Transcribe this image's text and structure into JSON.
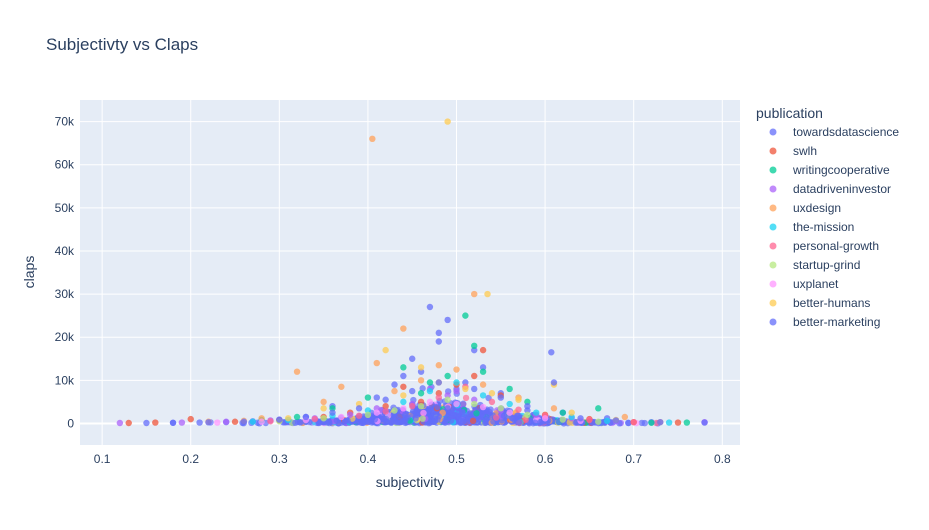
{
  "chart_data": {
    "type": "scatter",
    "title": "Subjectivty vs Claps",
    "xlabel": "subjectivity",
    "ylabel": "claps",
    "xlim": [
      0.075,
      0.82
    ],
    "ylim": [
      -5000,
      75000
    ],
    "x_ticks": [
      0.1,
      0.2,
      0.3,
      0.4,
      0.5,
      0.6,
      0.7,
      0.8
    ],
    "x_tick_labels": [
      "0.1",
      "0.2",
      "0.3",
      "0.4",
      "0.5",
      "0.6",
      "0.7",
      "0.8"
    ],
    "y_ticks": [
      0,
      10000,
      20000,
      30000,
      40000,
      50000,
      60000,
      70000
    ],
    "y_tick_labels": [
      "0",
      "10k",
      "20k",
      "30k",
      "40k",
      "50k",
      "60k",
      "70k"
    ],
    "grid": true,
    "legend": {
      "title": "publication",
      "placement": "right"
    },
    "series": [
      {
        "name": "towardsdatascience",
        "color": "#636efa",
        "points": [
          [
            0.49,
            3500
          ],
          [
            0.47,
            27000
          ],
          [
            0.52,
            17000
          ],
          [
            0.45,
            15000
          ],
          [
            0.53,
            13000
          ],
          [
            0.43,
            9000
          ],
          [
            0.48,
            19000
          ],
          [
            0.5,
            8000
          ],
          [
            0.46,
            12000
          ],
          [
            0.55,
            7000
          ],
          [
            0.41,
            6000
          ],
          [
            0.44,
            11000
          ],
          [
            0.51,
            9500
          ],
          [
            0.36,
            4000
          ],
          [
            0.58,
            3000
          ],
          [
            0.62,
            2500
          ],
          [
            0.33,
            1500
          ],
          [
            0.3,
            800
          ],
          [
            0.27,
            500
          ],
          [
            0.67,
            1200
          ],
          [
            0.72,
            300
          ],
          [
            0.24,
            300
          ],
          [
            0.21,
            200
          ],
          [
            0.18,
            150
          ],
          [
            0.15,
            100
          ],
          [
            0.48,
            21000
          ],
          [
            0.49,
            24000
          ]
        ]
      },
      {
        "name": "swlh",
        "color": "#ef553b",
        "points": [
          [
            0.53,
            17000
          ],
          [
            0.5,
            9000
          ],
          [
            0.46,
            5000
          ],
          [
            0.55,
            6500
          ],
          [
            0.42,
            4000
          ],
          [
            0.48,
            7000
          ],
          [
            0.38,
            2500
          ],
          [
            0.6,
            2000
          ],
          [
            0.52,
            11000
          ],
          [
            0.44,
            8500
          ],
          [
            0.35,
            1500
          ],
          [
            0.65,
            1000
          ],
          [
            0.3,
            700
          ],
          [
            0.25,
            400
          ],
          [
            0.2,
            1000
          ],
          [
            0.16,
            200
          ],
          [
            0.13,
            100
          ],
          [
            0.75,
            200
          ],
          [
            0.7,
            300
          ]
        ]
      },
      {
        "name": "writingcooperative",
        "color": "#00cc96",
        "points": [
          [
            0.51,
            25000
          ],
          [
            0.52,
            18000
          ],
          [
            0.44,
            13000
          ],
          [
            0.49,
            11000
          ],
          [
            0.56,
            8000
          ],
          [
            0.4,
            6000
          ],
          [
            0.47,
            9500
          ],
          [
            0.53,
            12000
          ],
          [
            0.46,
            7000
          ],
          [
            0.58,
            5000
          ],
          [
            0.36,
            3500
          ],
          [
            0.62,
            2500
          ],
          [
            0.66,
            3500
          ],
          [
            0.32,
            1500
          ],
          [
            0.28,
            800
          ],
          [
            0.76,
            200
          ],
          [
            0.72,
            150
          ]
        ]
      },
      {
        "name": "datadriveninvestor",
        "color": "#ab63fa",
        "points": [
          [
            0.49,
            6500
          ],
          [
            0.45,
            4500
          ],
          [
            0.52,
            5500
          ],
          [
            0.41,
            3500
          ],
          [
            0.55,
            3000
          ],
          [
            0.38,
            2000
          ],
          [
            0.59,
            2000
          ],
          [
            0.34,
            1200
          ],
          [
            0.63,
            1200
          ],
          [
            0.29,
            700
          ],
          [
            0.68,
            500
          ],
          [
            0.24,
            400
          ],
          [
            0.19,
            200
          ],
          [
            0.78,
            300
          ],
          [
            0.12,
            100
          ],
          [
            0.47,
            8000
          ],
          [
            0.5,
            7500
          ]
        ]
      },
      {
        "name": "uxdesign",
        "color": "#ffa15a",
        "points": [
          [
            0.405,
            66000
          ],
          [
            0.52,
            30000
          ],
          [
            0.44,
            22000
          ],
          [
            0.48,
            13500
          ],
          [
            0.41,
            14000
          ],
          [
            0.46,
            10000
          ],
          [
            0.5,
            12500
          ],
          [
            0.53,
            9000
          ],
          [
            0.37,
            8500
          ],
          [
            0.32,
            12000
          ],
          [
            0.57,
            6000
          ],
          [
            0.43,
            7500
          ],
          [
            0.35,
            5000
          ],
          [
            0.61,
            3500
          ],
          [
            0.28,
            1200
          ],
          [
            0.69,
            1500
          ],
          [
            0.26,
            600
          ],
          [
            0.22,
            400
          ],
          [
            0.73,
            300
          ]
        ]
      },
      {
        "name": "the-mission",
        "color": "#19d3f3",
        "points": [
          [
            0.5,
            9500
          ],
          [
            0.47,
            7500
          ],
          [
            0.53,
            6500
          ],
          [
            0.44,
            5000
          ],
          [
            0.56,
            4500
          ],
          [
            0.4,
            3000
          ],
          [
            0.59,
            2500
          ],
          [
            0.36,
            1800
          ],
          [
            0.63,
            1500
          ],
          [
            0.31,
            800
          ],
          [
            0.67,
            600
          ],
          [
            0.27,
            400
          ],
          [
            0.74,
            200
          ]
        ]
      },
      {
        "name": "personal-growth",
        "color": "#ff6692",
        "points": [
          [
            0.51,
            8500
          ],
          [
            0.48,
            6000
          ],
          [
            0.54,
            5000
          ],
          [
            0.45,
            4000
          ],
          [
            0.42,
            2800
          ],
          [
            0.57,
            3200
          ],
          [
            0.39,
            1800
          ],
          [
            0.6,
            1800
          ],
          [
            0.34,
            1000
          ],
          [
            0.65,
            800
          ],
          [
            0.29,
            500
          ],
          [
            0.7,
            300
          ]
        ]
      },
      {
        "name": "startup-grind",
        "color": "#b6e880",
        "points": [
          [
            0.49,
            5500
          ],
          [
            0.46,
            4000
          ],
          [
            0.52,
            4500
          ],
          [
            0.43,
            3000
          ],
          [
            0.55,
            3500
          ],
          [
            0.4,
            2000
          ],
          [
            0.58,
            2000
          ],
          [
            0.35,
            1200
          ],
          [
            0.62,
            900
          ],
          [
            0.3,
            500
          ],
          [
            0.66,
            400
          ]
        ]
      },
      {
        "name": "uxplanet",
        "color": "#ff97ff",
        "points": [
          [
            0.47,
            5000
          ],
          [
            0.5,
            4500
          ],
          [
            0.44,
            3500
          ],
          [
            0.53,
            3800
          ],
          [
            0.41,
            2500
          ],
          [
            0.56,
            2500
          ],
          [
            0.37,
            1500
          ],
          [
            0.6,
            1200
          ],
          [
            0.33,
            800
          ],
          [
            0.64,
            600
          ],
          [
            0.28,
            400
          ],
          [
            0.23,
            200
          ]
        ]
      },
      {
        "name": "better-humans",
        "color": "#fecb52",
        "points": [
          [
            0.49,
            70000
          ],
          [
            0.535,
            30000
          ],
          [
            0.42,
            17000
          ],
          [
            0.46,
            13000
          ],
          [
            0.48,
            9500
          ],
          [
            0.51,
            8000
          ],
          [
            0.44,
            6500
          ],
          [
            0.54,
            7000
          ],
          [
            0.39,
            4500
          ],
          [
            0.57,
            5500
          ],
          [
            0.61,
            9000
          ],
          [
            0.35,
            3500
          ],
          [
            0.63,
            2500
          ],
          [
            0.31,
            1200
          ],
          [
            0.68,
            800
          ]
        ]
      },
      {
        "name": "better-marketing",
        "color": "#636efa",
        "points": [
          [
            0.607,
            16500
          ],
          [
            0.48,
            9500
          ],
          [
            0.45,
            7500
          ],
          [
            0.52,
            8000
          ],
          [
            0.42,
            5500
          ],
          [
            0.55,
            6000
          ],
          [
            0.39,
            3500
          ],
          [
            0.58,
            4000
          ],
          [
            0.36,
            2500
          ],
          [
            0.61,
            9500
          ],
          [
            0.33,
            1500
          ],
          [
            0.64,
            1200
          ],
          [
            0.3,
            900
          ],
          [
            0.68,
            700
          ],
          [
            0.26,
            400
          ],
          [
            0.73,
            300
          ],
          [
            0.22,
            250
          ],
          [
            0.18,
            150
          ],
          [
            0.78,
            200
          ]
        ]
      }
    ]
  }
}
